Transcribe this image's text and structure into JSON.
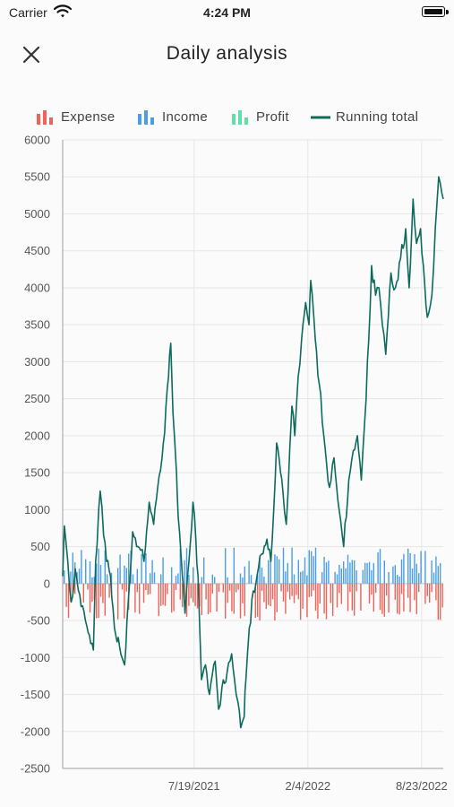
{
  "status_bar": {
    "carrier": "Carrier",
    "time": "4:24 PM"
  },
  "header": {
    "title": "Daily analysis"
  },
  "colors": {
    "expense": "#f0625a",
    "income": "#4a9de6",
    "profit": "#5ee0a8",
    "running_total": "#0d6b5c"
  },
  "legend": [
    {
      "label": "Expense",
      "icon": "bar-chart-icon",
      "color": "#f0625a"
    },
    {
      "label": "Income",
      "icon": "bar-chart-icon",
      "color": "#4a9de6"
    },
    {
      "label": "Profit",
      "icon": "bar-chart-icon",
      "color": "#5ee0a8"
    },
    {
      "label": "Running total",
      "icon": "line-icon",
      "color": "#0d6b5c"
    }
  ],
  "chart_data": {
    "type": "bar",
    "grid": true,
    "legend_position": "top",
    "ylim": [
      -2500,
      6000
    ],
    "yticks": [
      "6000",
      "5500",
      "5000",
      "4500",
      "4000",
      "3500",
      "3000",
      "2500",
      "2000",
      "1500",
      "1000",
      "500",
      "0",
      "-500",
      "-1000",
      "-1500",
      "-2000",
      "-2500"
    ],
    "xticks": [
      "7/19/2021",
      "2/4/2022",
      "8/23/2022"
    ],
    "x_start": "11/30/2020",
    "x_end": "9/30/2022",
    "bar_value_range": {
      "income": [
        0,
        500
      ],
      "expense": [
        -500,
        0
      ]
    },
    "series": [
      {
        "name": "Expense",
        "type": "bar"
      },
      {
        "name": "Income",
        "type": "bar"
      },
      {
        "name": "Profit",
        "type": "bar"
      },
      {
        "name": "Running total",
        "type": "line",
        "points": [
          [
            "11/30/2020",
            100
          ],
          [
            "12/3/2020",
            780
          ],
          [
            "12/9/2020",
            300
          ],
          [
            "12/15/2020",
            -250
          ],
          [
            "12/22/2020",
            200
          ],
          [
            "12/30/2020",
            -150
          ],
          [
            "1/9/2021",
            -500
          ],
          [
            "1/16/2021",
            -700
          ],
          [
            "1/23/2021",
            -900
          ],
          [
            "1/27/2021",
            300
          ],
          [
            "2/4/2021",
            1250
          ],
          [
            "2/10/2021",
            650
          ],
          [
            "2/15/2021",
            300
          ],
          [
            "2/22/2021",
            100
          ],
          [
            "3/1/2021",
            -600
          ],
          [
            "3/10/2021",
            -850
          ],
          [
            "3/19/2021",
            -1100
          ],
          [
            "3/23/2021",
            -500
          ],
          [
            "4/2/2021",
            700
          ],
          [
            "4/9/2021",
            500
          ],
          [
            "4/16/2021",
            450
          ],
          [
            "4/22/2021",
            300
          ],
          [
            "5/1/2021",
            1100
          ],
          [
            "5/9/2021",
            800
          ],
          [
            "5/16/2021",
            1300
          ],
          [
            "5/26/2021",
            1900
          ],
          [
            "6/4/2021",
            2800
          ],
          [
            "6/8/2021",
            3250
          ],
          [
            "6/12/2021",
            2300
          ],
          [
            "6/18/2021",
            1500
          ],
          [
            "6/21/2021",
            900
          ],
          [
            "6/26/2021",
            400
          ],
          [
            "7/3/2021",
            -400
          ],
          [
            "7/10/2021",
            300
          ],
          [
            "7/17/2021",
            1100
          ],
          [
            "7/22/2021",
            600
          ],
          [
            "7/26/2021",
            100
          ],
          [
            "8/1/2021",
            -1300
          ],
          [
            "8/8/2021",
            -1100
          ],
          [
            "8/15/2021",
            -1500
          ],
          [
            "8/25/2021",
            -1050
          ],
          [
            "8/31/2021",
            -1700
          ],
          [
            "9/6/2021",
            -1400
          ],
          [
            "9/15/2021",
            -1200
          ],
          [
            "9/23/2021",
            -950
          ],
          [
            "9/28/2021",
            -1300
          ],
          [
            "10/4/2021",
            -1600
          ],
          [
            "10/9/2021",
            -1950
          ],
          [
            "10/15/2021",
            -1800
          ],
          [
            "10/18/2021",
            -1300
          ],
          [
            "10/24/2021",
            -600
          ],
          [
            "10/31/2021",
            -100
          ],
          [
            "11/9/2021",
            200
          ],
          [
            "11/15/2021",
            400
          ],
          [
            "11/24/2021",
            600
          ],
          [
            "12/1/2021",
            300
          ],
          [
            "12/6/2021",
            1000
          ],
          [
            "12/11/2021",
            1900
          ],
          [
            "12/18/2021",
            1500
          ],
          [
            "12/22/2021",
            1250
          ],
          [
            "12/28/2021",
            800
          ],
          [
            "1/3/2022",
            1800
          ],
          [
            "1/7/2022",
            2400
          ],
          [
            "1/12/2022",
            2000
          ],
          [
            "1/18/2022",
            2800
          ],
          [
            "1/24/2022",
            3300
          ],
          [
            "1/31/2022",
            3800
          ],
          [
            "2/6/2022",
            3500
          ],
          [
            "2/9/2022",
            4100
          ],
          [
            "2/17/2022",
            3300
          ],
          [
            "2/24/2022",
            2700
          ],
          [
            "3/4/2022",
            2000
          ],
          [
            "3/14/2022",
            1300
          ],
          [
            "3/22/2022",
            1700
          ],
          [
            "3/31/2022",
            1000
          ],
          [
            "4/8/2022",
            500
          ],
          [
            "4/17/2022",
            1400
          ],
          [
            "4/25/2022",
            1800
          ],
          [
            "5/2/2022",
            2000
          ],
          [
            "5/9/2022",
            1400
          ],
          [
            "5/15/2022",
            2200
          ],
          [
            "5/22/2022",
            3300
          ],
          [
            "5/27/2022",
            4300
          ],
          [
            "6/3/2022",
            3900
          ],
          [
            "6/9/2022",
            4000
          ],
          [
            "6/15/2022",
            3500
          ],
          [
            "6/21/2022",
            3100
          ],
          [
            "6/30/2022",
            4200
          ],
          [
            "7/8/2022",
            4000
          ],
          [
            "7/17/2022",
            4400
          ],
          [
            "7/26/2022",
            4800
          ],
          [
            "8/1/2022",
            4000
          ],
          [
            "8/8/2022",
            5200
          ],
          [
            "8/14/2022",
            4600
          ],
          [
            "8/21/2022",
            4800
          ],
          [
            "8/26/2022",
            4300
          ],
          [
            "9/2/2022",
            3600
          ],
          [
            "9/10/2022",
            3900
          ],
          [
            "9/16/2022",
            4800
          ],
          [
            "9/22/2022",
            5500
          ],
          [
            "9/30/2022",
            5200
          ]
        ]
      }
    ]
  }
}
